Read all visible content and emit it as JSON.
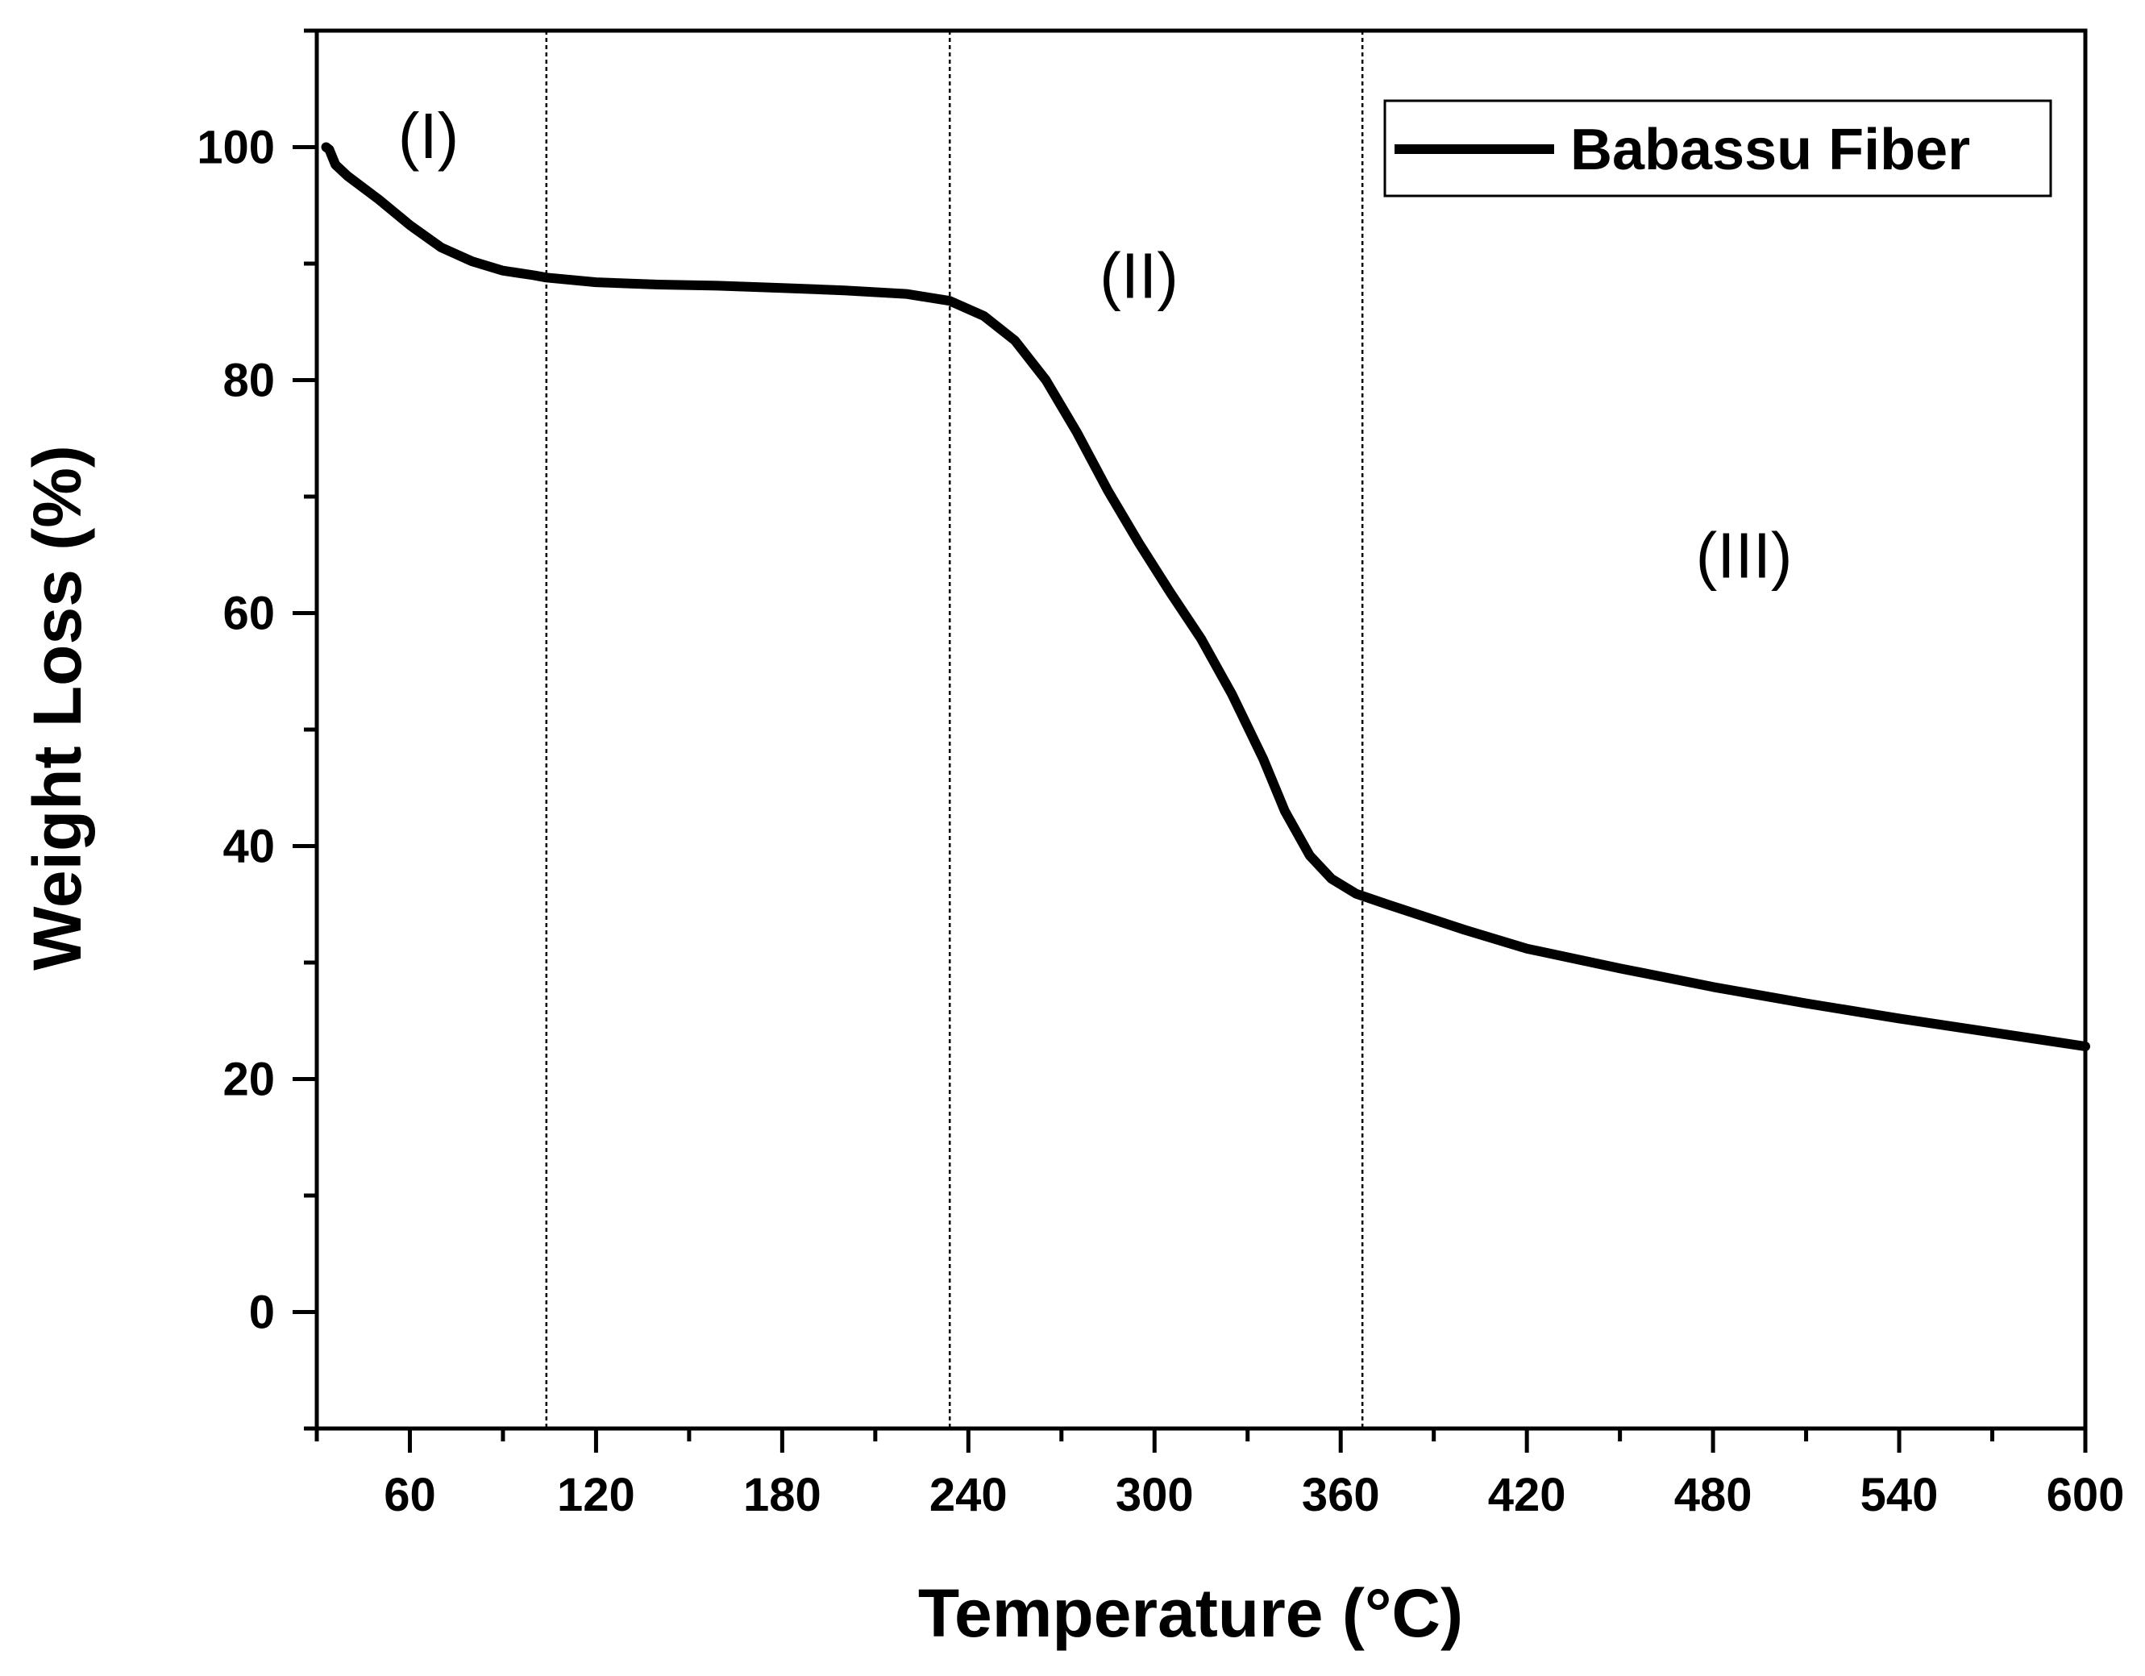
{
  "chart_data": {
    "type": "line",
    "xlabel": "Temperature (°C)",
    "ylabel": "Weight Loss (%)",
    "xlim": [
      30,
      600
    ],
    "ylim": [
      -10,
      110
    ],
    "x_ticks": [
      60,
      120,
      180,
      240,
      300,
      360,
      420,
      480,
      540,
      600
    ],
    "y_ticks": [
      0,
      20,
      40,
      60,
      80,
      100
    ],
    "grid": false,
    "legend": {
      "position": "top-right",
      "entries": [
        "Babassu Fiber"
      ]
    },
    "series": [
      {
        "name": "Babassu Fiber",
        "color": "#000000",
        "x": [
          33,
          34,
          36,
          40,
          50,
          60,
          70,
          80,
          90,
          100,
          104,
          120,
          140,
          160,
          180,
          200,
          220,
          234,
          245,
          255,
          265,
          275,
          285,
          295,
          305,
          315,
          325,
          335,
          342,
          350,
          357,
          365,
          375,
          400,
          420,
          450,
          480,
          510,
          540,
          570,
          600
        ],
        "y": [
          100,
          99.8,
          98.5,
          97.5,
          95.5,
          93.3,
          91.4,
          90.2,
          89.4,
          89.0,
          88.8,
          88.4,
          88.2,
          88.1,
          87.9,
          87.7,
          87.4,
          86.8,
          85.5,
          83.4,
          80.0,
          75.5,
          70.5,
          66.0,
          61.8,
          57.8,
          53.0,
          47.5,
          43.0,
          39.2,
          37.2,
          35.9,
          35.0,
          32.8,
          31.2,
          29.5,
          27.9,
          26.5,
          25.2,
          24.0,
          22.8
        ]
      }
    ],
    "vlines": [
      104,
      234,
      367
    ],
    "annotations": [
      {
        "text": "(I)",
        "x": 66,
        "y": 101
      },
      {
        "text": "(II)",
        "x": 295,
        "y": 89
      },
      {
        "text": "(III)",
        "x": 490,
        "y": 65
      }
    ]
  }
}
